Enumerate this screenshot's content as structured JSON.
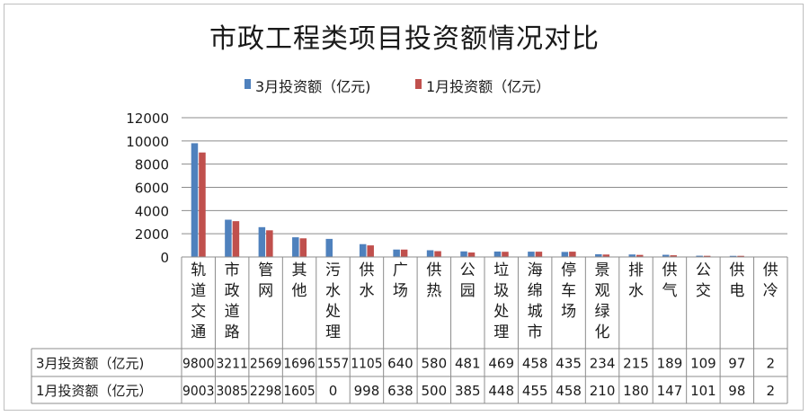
{
  "chart_data": {
    "type": "bar",
    "title": "市政工程类项目投资额情况对比",
    "categories": [
      "轨道交通",
      "市政道路",
      "管网",
      "其他",
      "污水处理",
      "供水",
      "广场",
      "供热",
      "公园",
      "垃圾处理",
      "海绵城市",
      "停车场",
      "景观绿化",
      "排水",
      "供气",
      "公交",
      "供电",
      "供冷"
    ],
    "series": [
      {
        "name": "3月投资额（亿元)",
        "values": [
          9800,
          3211,
          2569,
          1696,
          1557,
          1105,
          640,
          580,
          481,
          469,
          458,
          435,
          234,
          215,
          189,
          109,
          97,
          2
        ],
        "color": "#4f81bd"
      },
      {
        "name": "1月投资额（亿元）",
        "values": [
          9003,
          3085,
          2298,
          1605,
          0,
          998,
          638,
          500,
          385,
          448,
          455,
          458,
          210,
          180,
          147,
          101,
          98,
          2
        ],
        "color": "#c0504d"
      }
    ],
    "table_row_labels": [
      "3月投资额（亿元)",
      "1月投资额（亿元）"
    ],
    "ylim": [
      0,
      12000
    ],
    "yticks": [
      0,
      2000,
      4000,
      6000,
      8000,
      10000,
      12000
    ],
    "grid": true,
    "legend": "top-center",
    "data_table": true
  }
}
